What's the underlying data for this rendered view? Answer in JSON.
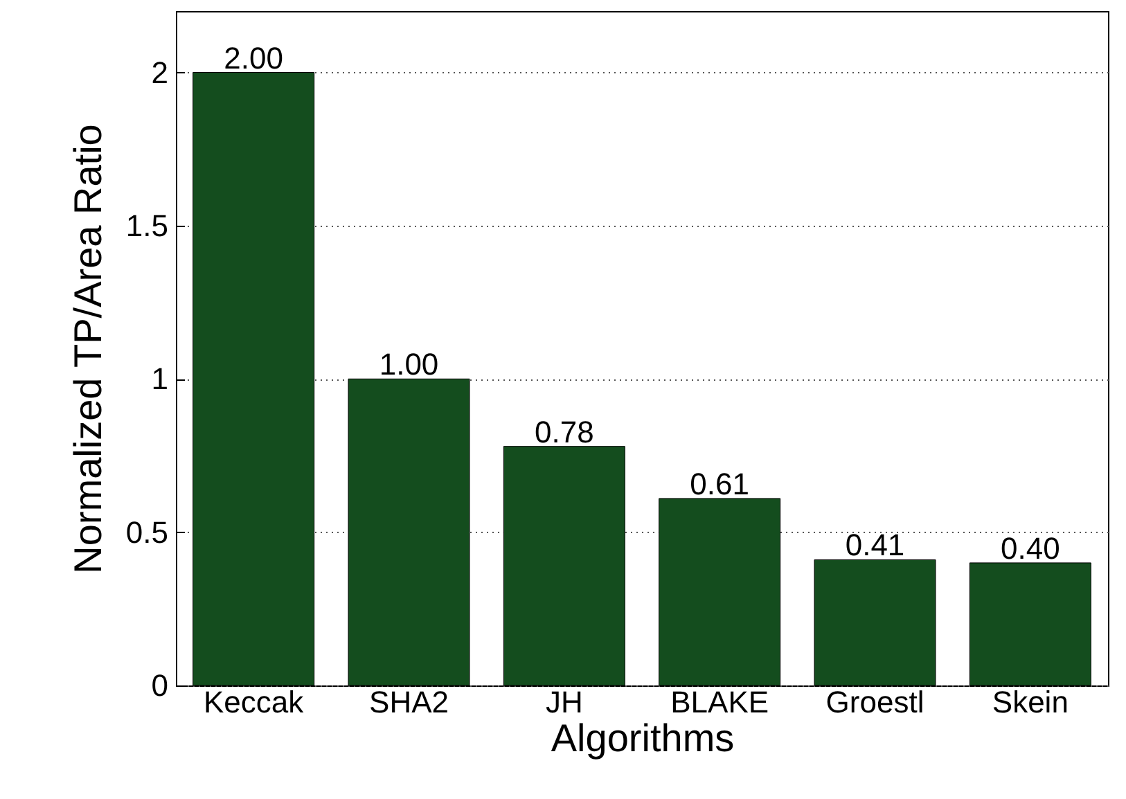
{
  "chart_data": {
    "type": "bar",
    "xlabel": "Algorithms",
    "ylabel": "Normalized TP/Area Ratio",
    "categories": [
      "Keccak",
      "SHA2",
      "JH",
      "BLAKE",
      "Groestl",
      "Skein"
    ],
    "values": [
      2,
      1,
      0.78,
      0.61,
      0.41,
      0.4
    ],
    "value_labels": [
      "2.00",
      "1.00",
      "0.78",
      "0.61",
      "0.41",
      "0.40"
    ],
    "color": "#144d1e",
    "ylim": [
      0,
      2.2
    ],
    "yticks": [
      0,
      0.5,
      1,
      1.5,
      2
    ],
    "grid": "y"
  }
}
